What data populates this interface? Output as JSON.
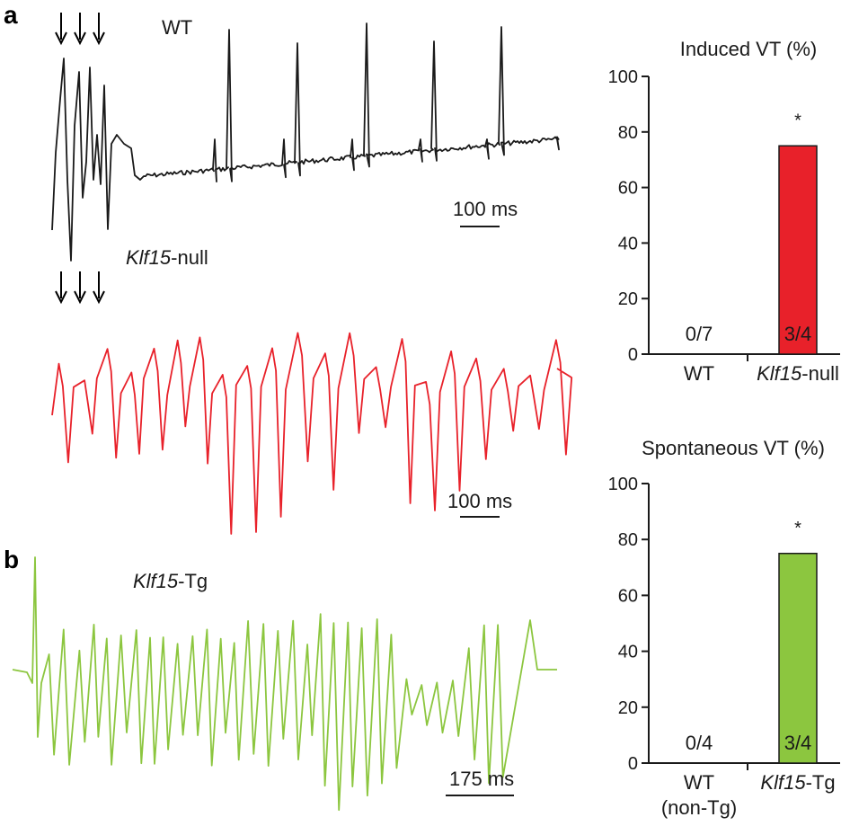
{
  "panels": {
    "a": "a",
    "b": "b"
  },
  "traces": [
    {
      "id": "wt",
      "label": "WT",
      "scale_bar": "100 ms",
      "color": "#1a1a1a",
      "stimulus_arrows": 3
    },
    {
      "id": "klf15null",
      "label_italic": "Klf15",
      "label_rest": "-null",
      "scale_bar": "100 ms",
      "color": "#e8212a",
      "stimulus_arrows": 3
    },
    {
      "id": "klf15tg",
      "label_italic": "Klf15",
      "label_rest": "-Tg",
      "scale_bar": "175 ms",
      "color": "#8cc63f",
      "stimulus_arrows": 0
    }
  ],
  "chart_data": [
    {
      "type": "bar",
      "title": "Induced VT (%)",
      "categories": [
        "WT",
        "Klf15-null"
      ],
      "category_labels": [
        {
          "text": "WT"
        },
        {
          "italic": "Klf15",
          "rest": "-null"
        }
      ],
      "values": [
        0,
        75
      ],
      "bar_labels": [
        "0/7",
        "3/4"
      ],
      "significance": [
        "",
        "*"
      ],
      "colors": [
        "#e8212a",
        "#e8212a"
      ],
      "ylim": [
        0,
        100
      ],
      "yticks": [
        0,
        20,
        40,
        60,
        80,
        100
      ],
      "xlabel": "",
      "ylabel": "",
      "grid": false
    },
    {
      "type": "bar",
      "title": "Spontaneous VT (%)",
      "categories": [
        "WT (non-Tg)",
        "Klf15-Tg"
      ],
      "category_labels": [
        {
          "text": "WT",
          "line2": "(non-Tg)"
        },
        {
          "italic": "Klf15",
          "rest": "-Tg"
        }
      ],
      "values": [
        0,
        75
      ],
      "bar_labels": [
        "0/4",
        "3/4"
      ],
      "significance": [
        "",
        "*"
      ],
      "colors": [
        "#8cc63f",
        "#8cc63f"
      ],
      "ylim": [
        0,
        100
      ],
      "yticks": [
        0,
        20,
        40,
        60,
        80,
        100
      ],
      "xlabel": "",
      "ylabel": "",
      "grid": false
    }
  ]
}
